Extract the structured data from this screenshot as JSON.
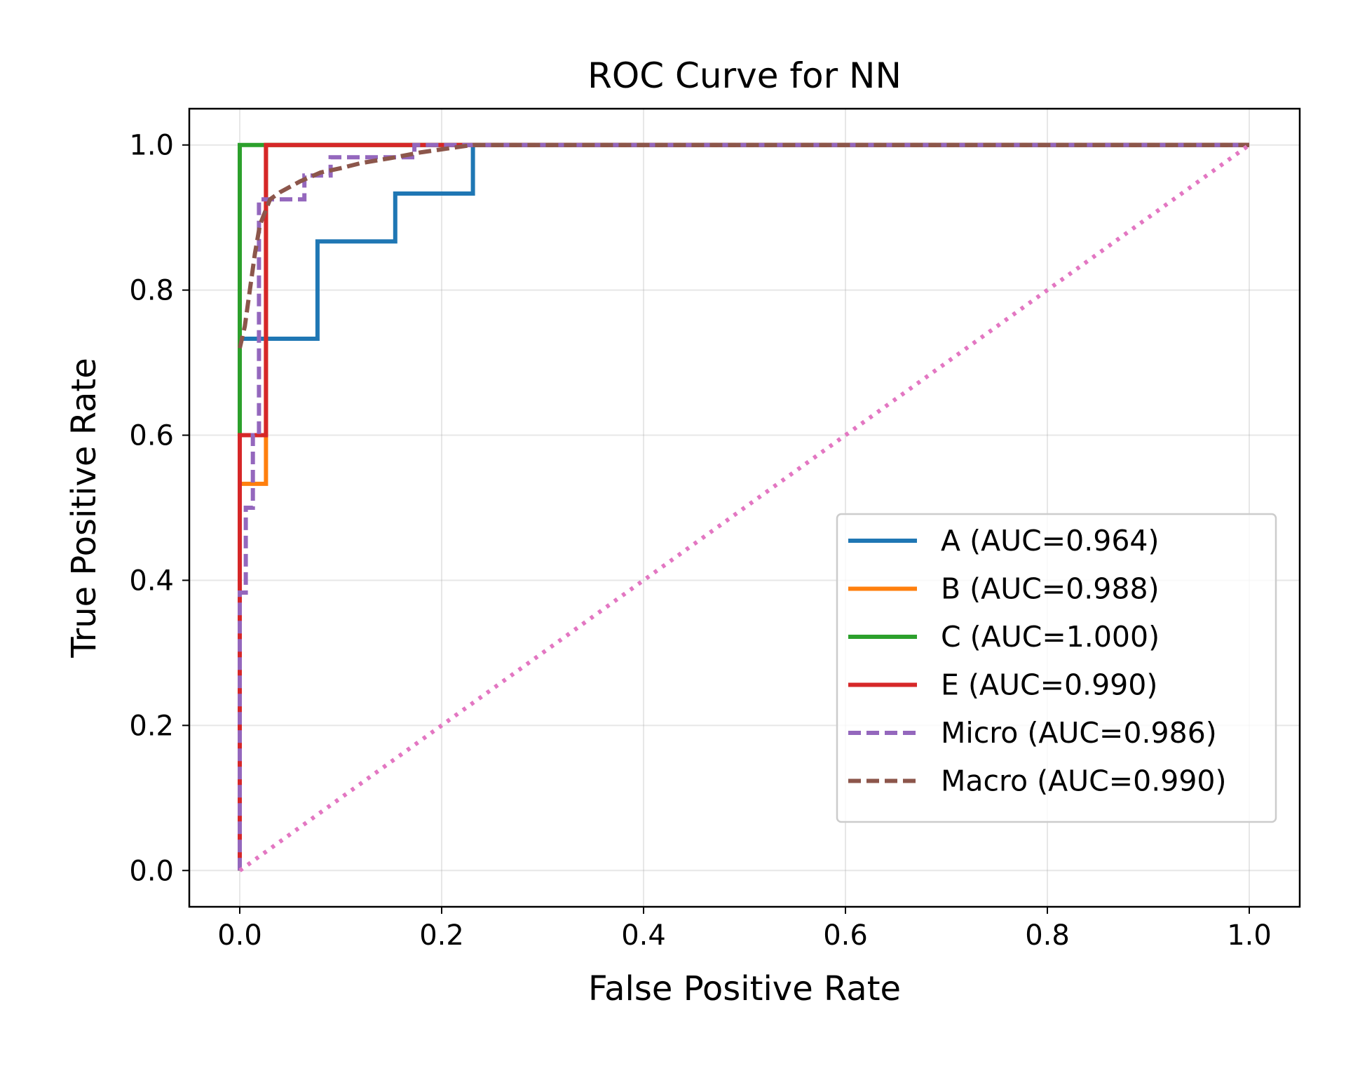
{
  "chart_data": {
    "type": "line",
    "title": "ROC Curve for NN",
    "xlabel": "False Positive Rate",
    "ylabel": "True Positive Rate",
    "xlim": [
      -0.05,
      1.05
    ],
    "ylim": [
      -0.05,
      1.05
    ],
    "xticks": [
      0.0,
      0.2,
      0.4,
      0.6,
      0.8,
      1.0
    ],
    "xtick_labels": [
      "0.0",
      "0.2",
      "0.4",
      "0.6",
      "0.8",
      "1.0"
    ],
    "yticks": [
      0.0,
      0.2,
      0.4,
      0.6,
      0.8,
      1.0
    ],
    "ytick_labels": [
      "0.0",
      "0.2",
      "0.4",
      "0.6",
      "0.8",
      "1.0"
    ],
    "grid": true,
    "legend_position": "center-right",
    "series": [
      {
        "name": "A (AUC=0.964)",
        "color": "#1f77b4",
        "style": "solid",
        "x": [
          0.0,
          0.0,
          0.077,
          0.077,
          0.154,
          0.154,
          0.231,
          0.231,
          1.0
        ],
        "y": [
          0.0,
          0.733,
          0.733,
          0.867,
          0.867,
          0.933,
          0.933,
          1.0,
          1.0
        ]
      },
      {
        "name": "B (AUC=0.988)",
        "color": "#ff7f0e",
        "style": "solid",
        "x": [
          0.0,
          0.0,
          0.026,
          0.026,
          1.0
        ],
        "y": [
          0.0,
          0.533,
          0.533,
          1.0,
          1.0
        ]
      },
      {
        "name": "C (AUC=1.000)",
        "color": "#2ca02c",
        "style": "solid",
        "x": [
          0.0,
          0.0,
          1.0
        ],
        "y": [
          0.0,
          1.0,
          1.0
        ]
      },
      {
        "name": "E (AUC=0.990)",
        "color": "#d62728",
        "style": "solid",
        "x": [
          0.0,
          0.0,
          0.026,
          0.026,
          1.0
        ],
        "y": [
          0.0,
          0.6,
          0.6,
          1.0,
          1.0
        ]
      },
      {
        "name": "Micro (AUC=0.986)",
        "color": "#9467bd",
        "style": "dashed",
        "x": [
          0.0,
          0.0,
          0.006,
          0.006,
          0.013,
          0.013,
          0.019,
          0.019,
          0.064,
          0.064,
          0.09,
          0.09,
          0.173,
          0.173,
          1.0
        ],
        "y": [
          0.0,
          0.383,
          0.383,
          0.5,
          0.5,
          0.6,
          0.6,
          0.925,
          0.925,
          0.958,
          0.958,
          0.983,
          0.983,
          1.0,
          1.0
        ]
      },
      {
        "name": "Macro (AUC=0.990)",
        "color": "#8c564b",
        "style": "dashed",
        "x": [
          0.0,
          0.005,
          0.01,
          0.015,
          0.02,
          0.03,
          0.04,
          0.06,
          0.08,
          0.1,
          0.12,
          0.15,
          0.18,
          0.21,
          0.231,
          0.25,
          0.5,
          1.0
        ],
        "y": [
          0.72,
          0.75,
          0.8,
          0.85,
          0.89,
          0.925,
          0.935,
          0.95,
          0.962,
          0.968,
          0.975,
          0.982,
          0.99,
          0.996,
          1.0,
          1.0,
          1.0,
          1.0
        ]
      },
      {
        "name": "",
        "color": "#e377c2",
        "style": "dotted",
        "legend": false,
        "x": [
          0.0,
          1.0
        ],
        "y": [
          0.0,
          1.0
        ]
      }
    ]
  }
}
